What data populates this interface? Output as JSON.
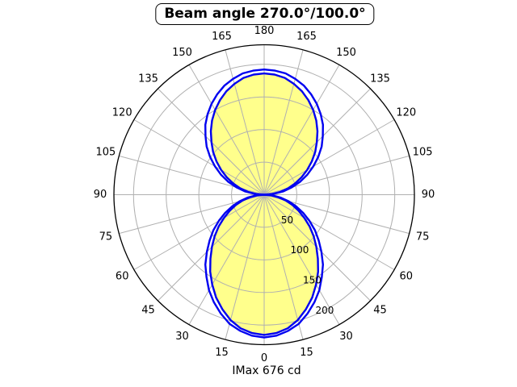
{
  "chart_data": {
    "type": "line",
    "subtype": "polar-intensity-distribution",
    "title": "Beam angle 270.0°/100.0°",
    "footer": "IMax 676 cd",
    "imax_cd": 676,
    "angle_unit": "degrees",
    "angle_ticks": [
      0,
      15,
      30,
      45,
      60,
      75,
      90,
      105,
      120,
      135,
      150,
      165,
      180
    ],
    "angle_tick_layout": "mirrored-left-right, 0 at bottom, 180 at top",
    "r_ticks": [
      50,
      100,
      150,
      200
    ],
    "r_max": 230,
    "grid": true,
    "legend": "none",
    "colors": {
      "curve": "#0000F0",
      "fill": "#FFFF8C",
      "grid": "#B0B0B0",
      "axis": "#000000",
      "background": "#FFFFFF"
    },
    "gamma_deg": [
      0,
      5,
      10,
      15,
      20,
      25,
      30,
      35,
      40,
      45,
      50,
      55,
      60,
      65,
      70,
      75,
      80,
      85,
      90,
      95,
      100,
      105,
      110,
      115,
      120,
      125,
      130,
      135,
      140,
      145,
      150,
      155,
      160,
      165,
      170,
      175,
      180
    ],
    "series": [
      {
        "name": "curve-outer",
        "filled": false,
        "values": [
          219,
          217,
          212,
          205,
          194,
          182,
          169,
          154,
          140,
          124,
          109,
          95,
          80,
          66,
          52,
          39,
          26,
          13,
          0,
          15,
          30,
          44,
          59,
          73,
          87,
          101,
          115,
          127,
          140,
          151,
          161,
          170,
          178,
          184,
          189,
          191,
          192
        ]
      },
      {
        "name": "curve-inner",
        "filled": true,
        "values": [
          215,
          213,
          208,
          199,
          187,
          174,
          159,
          144,
          128,
          113,
          99,
          85,
          71,
          58,
          46,
          34,
          22,
          11,
          0,
          12,
          25,
          38,
          50,
          63,
          76,
          89,
          102,
          114,
          127,
          139,
          150,
          160,
          169,
          176,
          182,
          185,
          186
        ]
      }
    ]
  }
}
